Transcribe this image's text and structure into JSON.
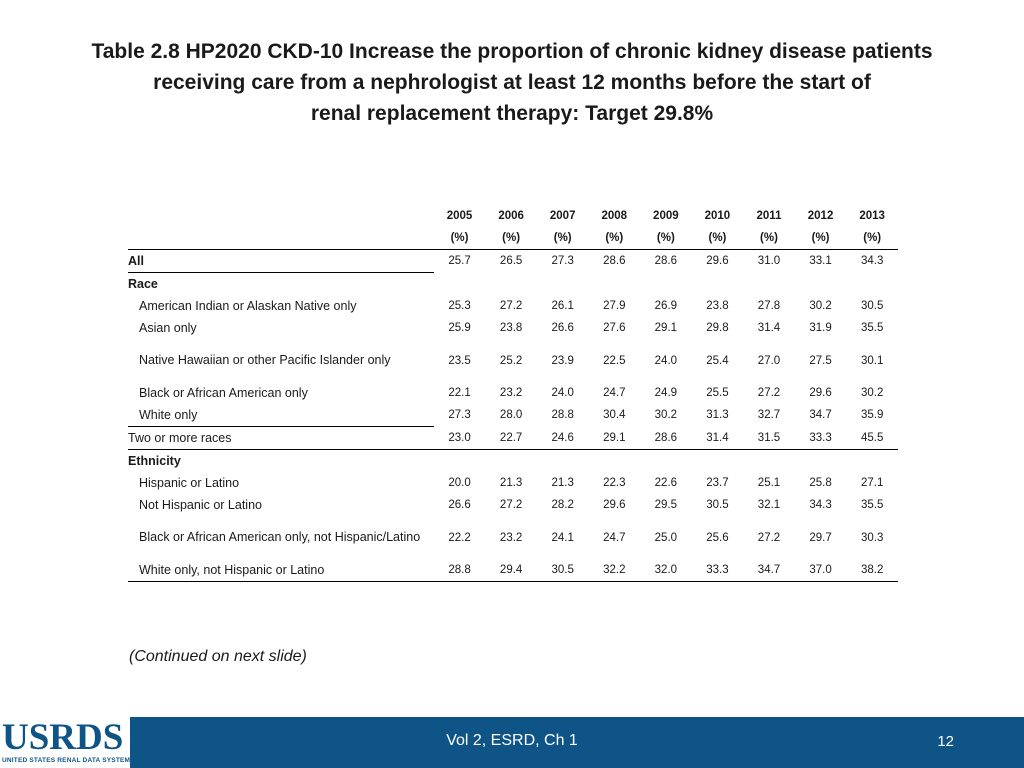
{
  "title": {
    "line1": "Table 2.8  HP2020 CKD-10 Increase the proportion of chronic kidney disease patients",
    "line2": "receiving care from a nephrologist at least 12 months before the start of",
    "line3": "renal replacement therapy: Target 29.8%"
  },
  "table": {
    "years": [
      "2005",
      "2006",
      "2007",
      "2008",
      "2009",
      "2010",
      "2011",
      "2012",
      "2013"
    ],
    "unit": "(%)",
    "rows": [
      {
        "label": "All",
        "values": [
          "25.7",
          "26.5",
          "27.3",
          "28.6",
          "28.6",
          "29.6",
          "31.0",
          "33.1",
          "34.3"
        ]
      },
      {
        "label": "Race",
        "values": []
      },
      {
        "label": "American Indian or Alaskan Native only",
        "values": [
          "25.3",
          "27.2",
          "26.1",
          "27.9",
          "26.9",
          "23.8",
          "27.8",
          "30.2",
          "30.5"
        ]
      },
      {
        "label": "Asian only",
        "values": [
          "25.9",
          "23.8",
          "26.6",
          "27.6",
          "29.1",
          "29.8",
          "31.4",
          "31.9",
          "35.5"
        ]
      },
      {
        "label": "Native Hawaiian or other Pacific Islander only",
        "values": [
          "23.5",
          "25.2",
          "23.9",
          "22.5",
          "24.0",
          "25.4",
          "27.0",
          "27.5",
          "30.1"
        ]
      },
      {
        "label": "Black or African American only",
        "values": [
          "22.1",
          "23.2",
          "24.0",
          "24.7",
          "24.9",
          "25.5",
          "27.2",
          "29.6",
          "30.2"
        ]
      },
      {
        "label": "White only",
        "values": [
          "27.3",
          "28.0",
          "28.8",
          "30.4",
          "30.2",
          "31.3",
          "32.7",
          "34.7",
          "35.9"
        ]
      },
      {
        "label": "Two or more races",
        "values": [
          "23.0",
          "22.7",
          "24.6",
          "29.1",
          "28.6",
          "31.4",
          "31.5",
          "33.3",
          "45.5"
        ]
      },
      {
        "label": "Ethnicity",
        "values": []
      },
      {
        "label": "Hispanic or Latino",
        "values": [
          "20.0",
          "21.3",
          "21.3",
          "22.3",
          "22.6",
          "23.7",
          "25.1",
          "25.8",
          "27.1"
        ]
      },
      {
        "label": "Not Hispanic or Latino",
        "values": [
          "26.6",
          "27.2",
          "28.2",
          "29.6",
          "29.5",
          "30.5",
          "32.1",
          "34.3",
          "35.5"
        ]
      },
      {
        "label": "Black or African American only, not Hispanic/Latino",
        "values": [
          "22.2",
          "23.2",
          "24.1",
          "24.7",
          "25.0",
          "25.6",
          "27.2",
          "29.7",
          "30.3"
        ]
      },
      {
        "label": "White only, not Hispanic or Latino",
        "values": [
          "28.8",
          "29.4",
          "30.5",
          "32.2",
          "32.0",
          "33.3",
          "34.7",
          "37.0",
          "38.2"
        ]
      }
    ]
  },
  "continued": "(Continued on next slide)",
  "footer": {
    "logo_text": "USRDS",
    "logo_subtext": "UNITED STATES RENAL DATA SYSTEM",
    "center_text": "Vol 2, ESRD, Ch 1",
    "page_number": "12",
    "bar_color": "#0e5486"
  }
}
